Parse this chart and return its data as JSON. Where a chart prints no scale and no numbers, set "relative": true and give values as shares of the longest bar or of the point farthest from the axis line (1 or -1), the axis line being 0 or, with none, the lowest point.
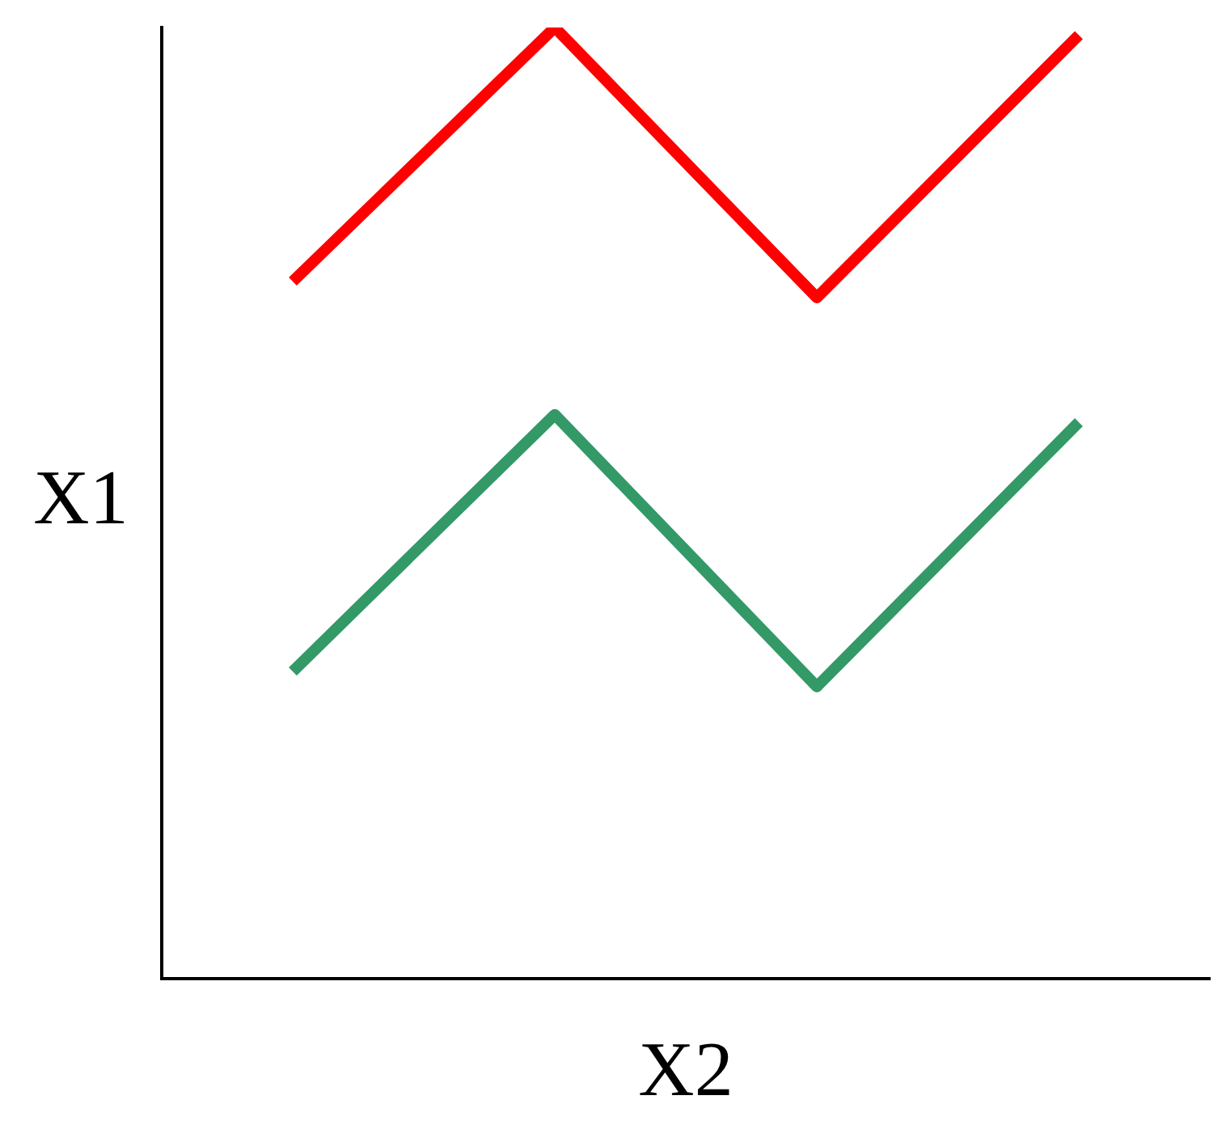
{
  "chart_data": {
    "type": "line",
    "relative": true,
    "xlabel": "X2",
    "ylabel": "X1",
    "grid": false,
    "legend": false,
    "marker": "none",
    "line_style": "solid",
    "categories": [
      null,
      null,
      null,
      null
    ],
    "series": [
      {
        "color": "#ff0000",
        "values": [
          0.733,
          1,
          0.716,
          0.992
        ]
      },
      {
        "color": "#339966",
        "values": [
          0.323,
          0.593,
          0.307,
          0.585
        ]
      }
    ]
  }
}
